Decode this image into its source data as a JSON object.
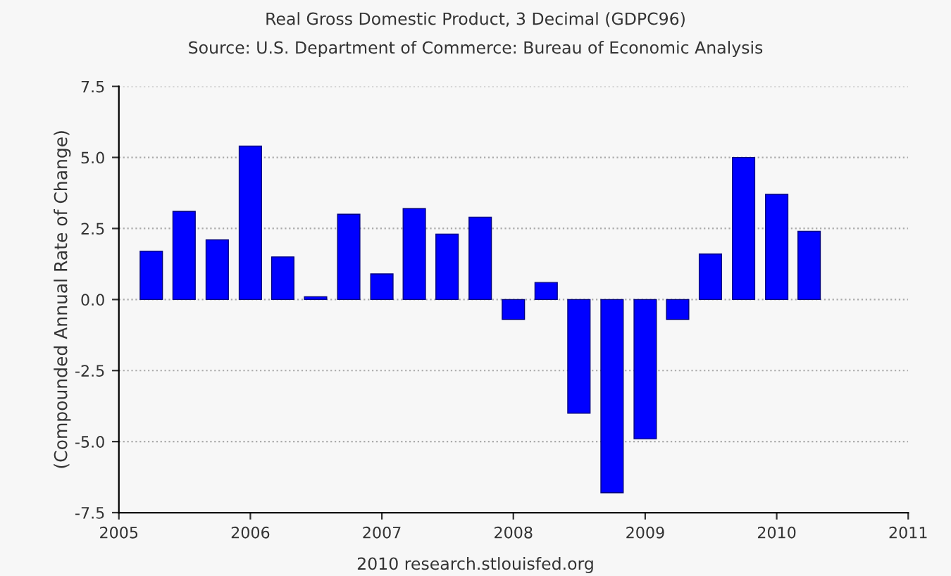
{
  "chart_data": {
    "type": "bar",
    "title": "Real Gross Domestic Product, 3 Decimal (GDPC96)",
    "subtitle": "Source: U.S. Department of Commerce: Bureau of Economic Analysis",
    "ylabel": "(Compounded Annual Rate of Change)",
    "annotations": [
      "2010 research.stlouisfed.org"
    ],
    "x": [
      "2005-04",
      "2005-07",
      "2005-10",
      "2006-01",
      "2006-04",
      "2006-07",
      "2006-10",
      "2007-01",
      "2007-04",
      "2007-07",
      "2007-10",
      "2008-01",
      "2008-04",
      "2008-07",
      "2008-10",
      "2009-01",
      "2009-04",
      "2009-07",
      "2009-10",
      "2010-01",
      "2010-04"
    ],
    "values": [
      1.7,
      3.1,
      2.1,
      5.4,
      1.5,
      0.1,
      3.0,
      0.9,
      3.2,
      2.3,
      2.9,
      -0.7,
      0.6,
      -4.0,
      -6.8,
      -4.9,
      -0.7,
      1.6,
      5.0,
      3.7,
      2.4
    ],
    "color": "#0000ff",
    "xlim": [
      "2005",
      "2011"
    ],
    "xticks": [
      "2005",
      "2006",
      "2007",
      "2008",
      "2009",
      "2010",
      "2011"
    ],
    "ylim": [
      -7.5,
      7.5
    ],
    "yticks": [
      -7.5,
      {
        "value": -5,
        "label": "-5.0"
      },
      -2.5,
      {
        "value": 0,
        "label": "0.0"
      },
      2.5,
      {
        "value": 5,
        "label": "5.0"
      },
      7.5
    ],
    "grid": "y",
    "legend": false
  }
}
